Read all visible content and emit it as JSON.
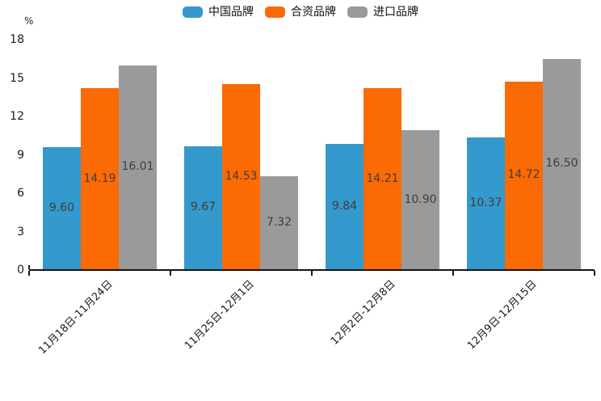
{
  "chart_data": {
    "type": "bar",
    "title": "",
    "xlabel": "",
    "ylabel": "%",
    "ylim": [
      0,
      18
    ],
    "y_ticks": [
      0,
      3,
      6,
      9,
      12,
      15,
      18
    ],
    "grid": false,
    "legend_position": "top-center",
    "value_label_format": "2-decimals-inside-bar",
    "categories": [
      "11月18日-11月24日",
      "11月25日-12月1日",
      "12月2日-12月8日",
      "12月9日-12月15日"
    ],
    "series": [
      {
        "name": "中国品牌",
        "color": "#3499CC",
        "values": [
          9.6,
          9.67,
          9.84,
          10.37
        ]
      },
      {
        "name": "合资品牌",
        "color": "#FC6A03",
        "values": [
          14.19,
          14.53,
          14.21,
          14.72
        ]
      },
      {
        "name": "进口品牌",
        "color": "#9A9A9A",
        "values": [
          16.01,
          7.32,
          10.9,
          16.5
        ]
      }
    ],
    "colors": {
      "axis": "#141414",
      "tick_text": "#1a1a1a",
      "bar_value_text": "#3d3d3d"
    }
  }
}
